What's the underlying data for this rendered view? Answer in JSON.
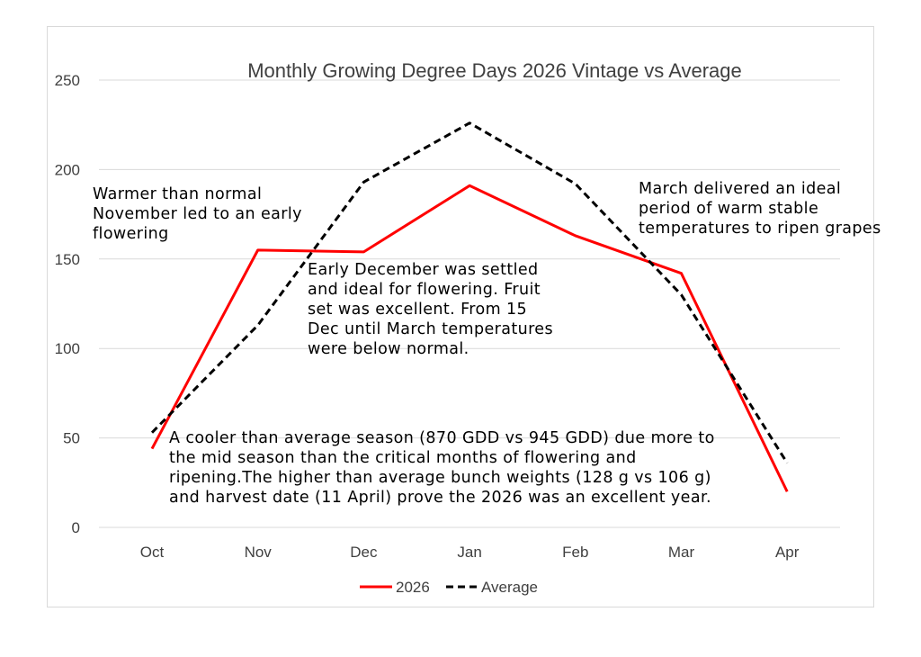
{
  "chart_data": {
    "type": "line",
    "title": "Monthly Growing Degree Days 2026 Vintage vs Average",
    "categories": [
      "Oct",
      "Nov",
      "Dec",
      "Jan",
      "Feb",
      "Mar",
      "Apr"
    ],
    "series": [
      {
        "name": "2026",
        "values": [
          44,
          155,
          154,
          191,
          163,
          142,
          20
        ],
        "color": "#ff0000",
        "style": "solid"
      },
      {
        "name": "Average",
        "values": [
          53,
          113,
          193,
          226,
          192,
          130,
          36
        ],
        "color": "#000000",
        "style": "dashed"
      }
    ],
    "ylim": [
      0,
      250
    ],
    "yticks": [
      "0",
      "50",
      "100",
      "150",
      "200",
      "250"
    ],
    "grid": true,
    "legend": "bottom",
    "annotations": [
      {
        "lines": [
          "Warmer than normal",
          "November led to an early",
          "flowering"
        ]
      },
      {
        "lines": [
          "Early December was settled",
          "and ideal for flowering. Fruit",
          "set was excellent. From 15",
          "Dec until March temperatures",
          "were below normal."
        ]
      },
      {
        "lines": [
          "March delivered an ideal",
          "period of warm stable",
          "temperatures to ripen grapes"
        ]
      },
      {
        "lines": [
          "A cooler than average season (870 GDD vs 945 GDD) due more to",
          "the mid season than the critical months of flowering and",
          "ripening.The higher than average bunch weights (128 g vs 106 g)",
          "and harvest date (11 April) prove the 2026 was an excellent year."
        ]
      }
    ]
  }
}
